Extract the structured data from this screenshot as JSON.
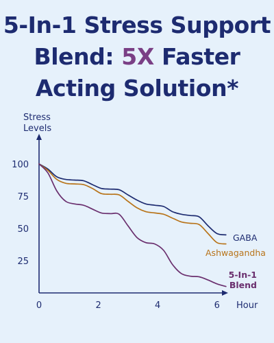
{
  "title": {
    "line1": "5-In-1 Stress Support",
    "line2_prefix": "Blend: ",
    "line2_accent": "5X",
    "line2_suffix": " Faster",
    "line3": "Acting Solution*"
  },
  "colors": {
    "background": "#e6f1fb",
    "title": "#1d2b70",
    "accent": "#7a3f85",
    "axis": "#1d2b70",
    "gaba": "#1d2b70",
    "ashwagandha": "#b8741a",
    "blend": "#6a2f6e"
  },
  "chart_data": {
    "type": "line",
    "title": "5-In-1 Stress Support Blend: 5X Faster Acting Solution*",
    "ylabel_lines": [
      "Stress",
      "Levels"
    ],
    "xlabel": "Hour",
    "xlim": [
      0,
      6.5
    ],
    "ylim": [
      0,
      108
    ],
    "x_ticks": [
      0,
      2,
      4,
      6
    ],
    "y_ticks": [
      25,
      50,
      75,
      100
    ],
    "grid": false,
    "series": [
      {
        "name": "GABA",
        "label_lines": [
          "GABA"
        ],
        "color": "#1d2b70",
        "x": [
          0,
          0.3,
          0.6,
          0.9,
          1.2,
          1.5,
          1.8,
          2.1,
          2.4,
          2.7,
          3.0,
          3.3,
          3.6,
          3.9,
          4.2,
          4.5,
          4.8,
          5.1,
          5.4,
          5.7,
          6.0,
          6.3
        ],
        "y": [
          100,
          96,
          90,
          88,
          87.5,
          87,
          84,
          81,
          80.5,
          80,
          76,
          72,
          69,
          68,
          67,
          63,
          61,
          60,
          59,
          52,
          46,
          45
        ]
      },
      {
        "name": "Ashwagandha",
        "label_lines": [
          "Ashwagandha"
        ],
        "color": "#b8741a",
        "x": [
          0,
          0.3,
          0.6,
          0.9,
          1.2,
          1.5,
          1.8,
          2.1,
          2.4,
          2.7,
          3.0,
          3.3,
          3.6,
          3.9,
          4.2,
          4.5,
          4.8,
          5.1,
          5.4,
          5.7,
          6.0,
          6.3
        ],
        "y": [
          100,
          95,
          88,
          85,
          84.5,
          84,
          81,
          77,
          76.5,
          76,
          71,
          66,
          63,
          62,
          61,
          58,
          55,
          54,
          53,
          46,
          39,
          38
        ]
      },
      {
        "name": "5-In-1 Blend",
        "label_lines": [
          "5-In-1",
          "Blend"
        ],
        "color": "#6a2f6e",
        "x": [
          0,
          0.3,
          0.6,
          0.9,
          1.2,
          1.5,
          1.8,
          2.1,
          2.4,
          2.7,
          3.0,
          3.3,
          3.6,
          3.9,
          4.2,
          4.5,
          4.8,
          5.1,
          5.4,
          5.7,
          6.0,
          6.3
        ],
        "y": [
          100,
          93,
          79,
          71,
          69,
          68,
          65,
          62,
          61.5,
          61,
          52,
          43,
          39,
          38,
          33,
          22,
          15,
          13,
          12.5,
          10,
          7,
          5
        ]
      }
    ]
  }
}
